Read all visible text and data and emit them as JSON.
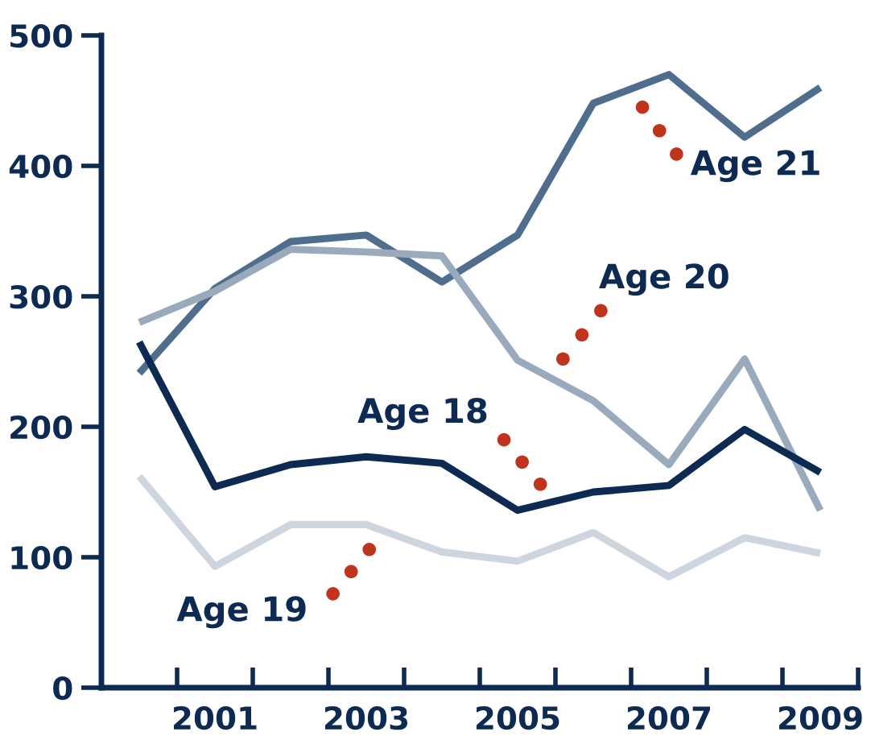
{
  "chart_data": {
    "type": "line",
    "categories": [
      null,
      "2001",
      null,
      "2003",
      null,
      "2005",
      null,
      "2007",
      null,
      "2009"
    ],
    "ylim": [
      0,
      500
    ],
    "yticks": [
      0,
      100,
      200,
      300,
      400,
      500
    ],
    "grid": false,
    "legend": false,
    "marker": "none",
    "line_style": "solid",
    "series": [
      {
        "name": "Age 21",
        "color": "#4f6d8c",
        "values": [
          241,
          306,
          342,
          347,
          311,
          347,
          448,
          470,
          422,
          460
        ]
      },
      {
        "name": "Age 20",
        "color": "#9aaabd",
        "values": [
          280,
          304,
          336,
          334,
          331,
          251,
          220,
          171,
          252,
          136
        ]
      },
      {
        "name": "Age 18",
        "color": "#0d2b52",
        "values": [
          265,
          154,
          171,
          177,
          172,
          136,
          150,
          155,
          198,
          165
        ]
      },
      {
        "name": "Age 19",
        "color": "#cdd6df",
        "values": [
          162,
          93,
          125,
          125,
          104,
          97,
          119,
          85,
          115,
          103
        ]
      }
    ]
  }
}
